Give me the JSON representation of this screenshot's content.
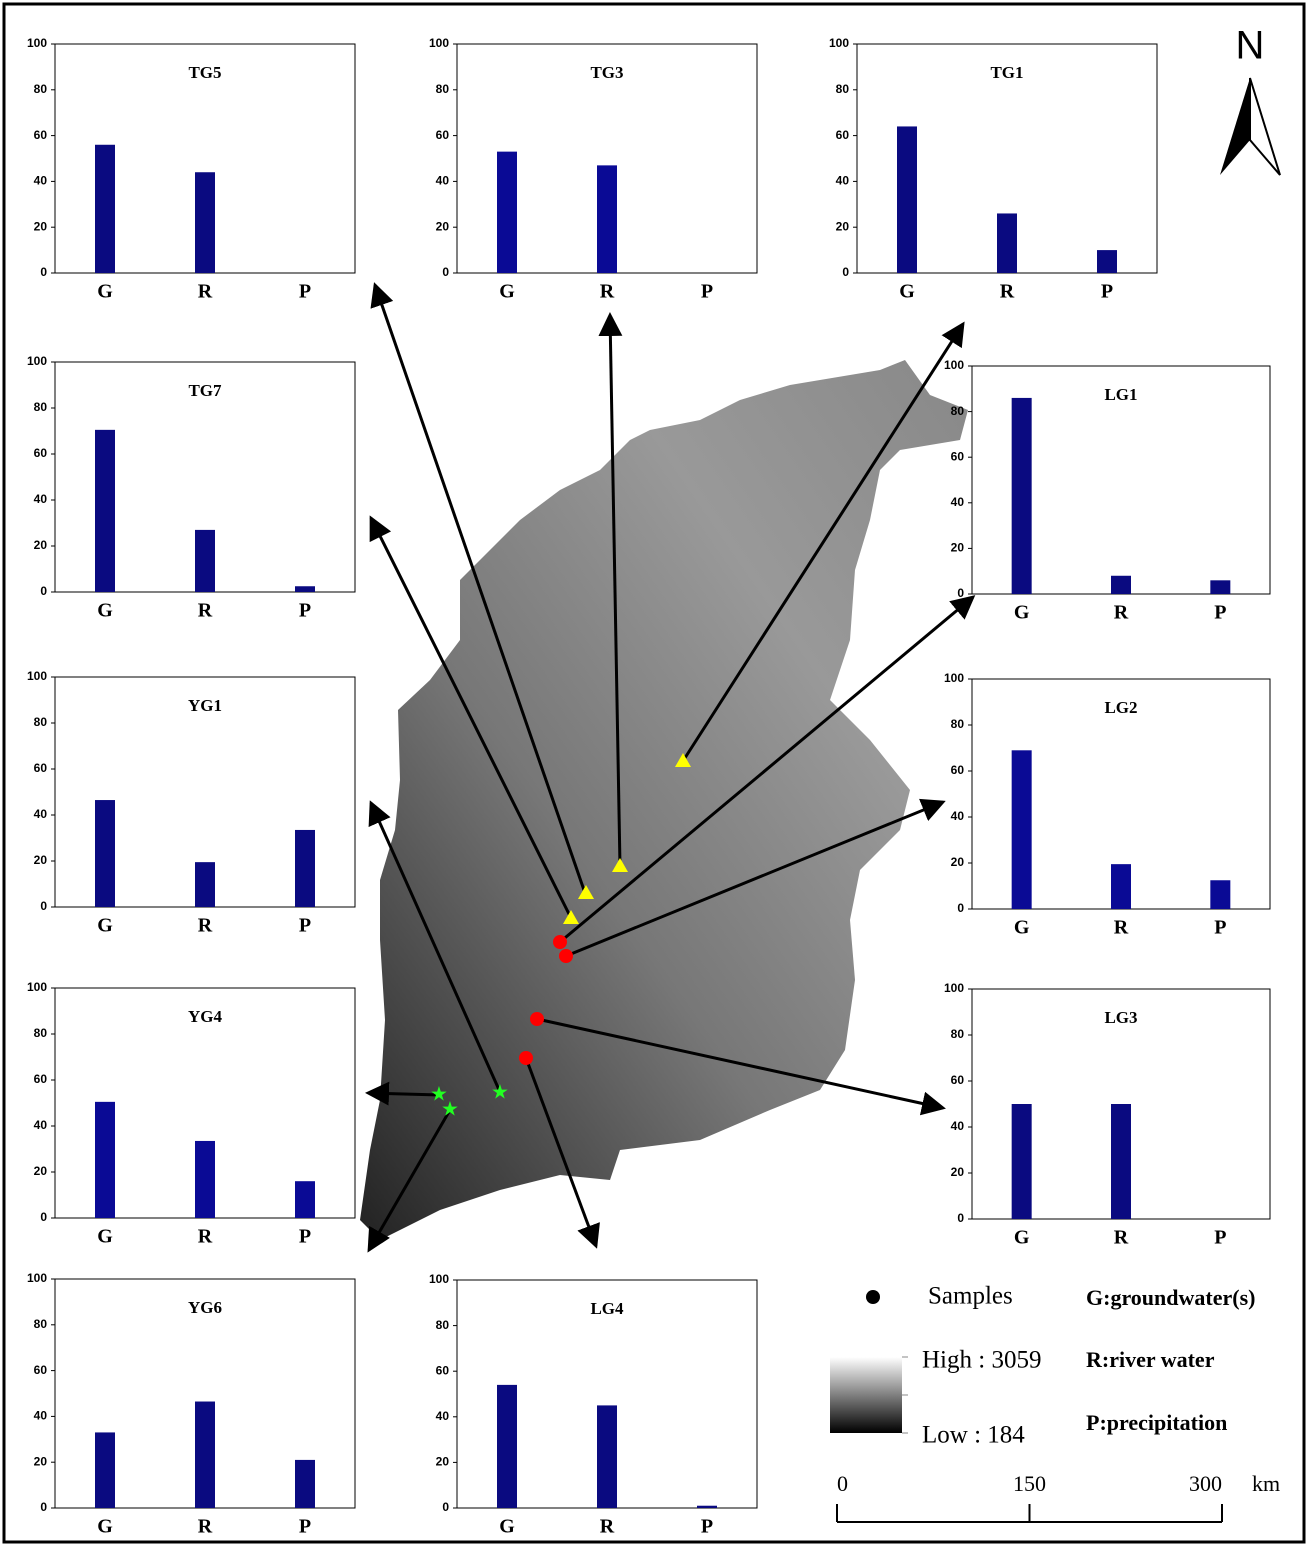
{
  "chart_data": [
    {
      "type": "bar",
      "title": "TG5",
      "categories": [
        "G",
        "R",
        "P"
      ],
      "values": [
        56,
        44,
        0
      ],
      "color": "#0a0a80",
      "ylim": [
        0,
        100
      ],
      "yticks": [
        0,
        20,
        40,
        60,
        80,
        100
      ]
    },
    {
      "type": "bar",
      "title": "TG3",
      "categories": [
        "G",
        "R",
        "P"
      ],
      "values": [
        53,
        47,
        0
      ],
      "color": "#0a0a95",
      "ylim": [
        0,
        100
      ],
      "yticks": [
        0,
        20,
        40,
        60,
        80,
        100
      ]
    },
    {
      "type": "bar",
      "title": "TG1",
      "categories": [
        "G",
        "R",
        "P"
      ],
      "values": [
        64,
        26,
        10
      ],
      "color": "#0a0a80",
      "ylim": [
        0,
        100
      ],
      "yticks": [
        0,
        20,
        40,
        60,
        80,
        100
      ]
    },
    {
      "type": "bar",
      "title": "TG7",
      "categories": [
        "G",
        "R",
        "P"
      ],
      "values": [
        70.5,
        27,
        2.5
      ],
      "color": "#0a0a80",
      "ylim": [
        0,
        100
      ],
      "yticks": [
        0,
        20,
        40,
        60,
        80,
        100
      ]
    },
    {
      "type": "bar",
      "title": "LG1",
      "categories": [
        "G",
        "R",
        "P"
      ],
      "values": [
        86,
        8,
        6
      ],
      "color": "#0a0a80",
      "ylim": [
        0,
        100
      ],
      "yticks": [
        0,
        20,
        40,
        60,
        80,
        100
      ]
    },
    {
      "type": "bar",
      "title": "YG1",
      "categories": [
        "G",
        "R",
        "P"
      ],
      "values": [
        46.5,
        19.5,
        33.5
      ],
      "color": "#0a0a80",
      "ylim": [
        0,
        100
      ],
      "yticks": [
        0,
        20,
        40,
        60,
        80,
        100
      ]
    },
    {
      "type": "bar",
      "title": "LG2",
      "categories": [
        "G",
        "R",
        "P"
      ],
      "values": [
        69,
        19.5,
        12.5
      ],
      "color": "#0a0a95",
      "ylim": [
        0,
        100
      ],
      "yticks": [
        0,
        20,
        40,
        60,
        80,
        100
      ]
    },
    {
      "type": "bar",
      "title": "YG4",
      "categories": [
        "G",
        "R",
        "P"
      ],
      "values": [
        50.5,
        33.5,
        16
      ],
      "color": "#0a0a95",
      "ylim": [
        0,
        100
      ],
      "yticks": [
        0,
        20,
        40,
        60,
        80,
        100
      ]
    },
    {
      "type": "bar",
      "title": "LG3",
      "categories": [
        "G",
        "R",
        "P"
      ],
      "values": [
        50,
        50,
        0
      ],
      "color": "#0a0a80",
      "ylim": [
        0,
        100
      ],
      "yticks": [
        0,
        20,
        40,
        60,
        80,
        100
      ]
    },
    {
      "type": "bar",
      "title": "YG6",
      "categories": [
        "G",
        "R",
        "P"
      ],
      "values": [
        33,
        46.5,
        21
      ],
      "color": "#0a0a80",
      "ylim": [
        0,
        100
      ],
      "yticks": [
        0,
        20,
        40,
        60,
        80,
        100
      ]
    },
    {
      "type": "bar",
      "title": "LG4",
      "categories": [
        "G",
        "R",
        "P"
      ],
      "values": [
        54,
        45,
        1
      ],
      "color": "#0a0a80",
      "ylim": [
        0,
        100
      ],
      "yticks": [
        0,
        20,
        40,
        60,
        80,
        100
      ]
    }
  ],
  "map": {
    "north": "N",
    "samples": "Samples",
    "high": "High : 3059",
    "low": "Low : 184",
    "notes": [
      "G:groundwater(s)",
      "R:river water",
      "P:precipitation"
    ],
    "scale": {
      "ticks": [
        0,
        150,
        300
      ],
      "unit": "km"
    }
  }
}
